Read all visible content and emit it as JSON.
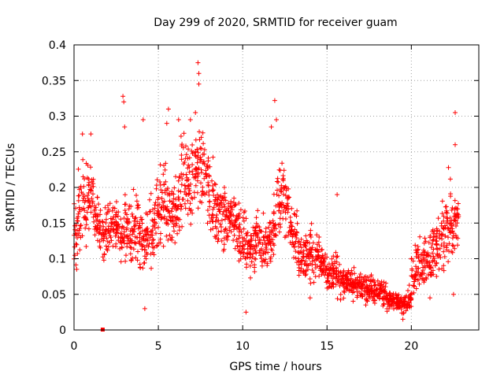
{
  "chart_data": {
    "type": "scatter",
    "title": "Day 299 of 2020, SRMTID for receiver guam",
    "xlabel": "GPS time / hours",
    "ylabel": "SRMTID / TECUs",
    "xlim": [
      0,
      24
    ],
    "ylim": [
      0,
      0.4
    ],
    "x_ticks": [
      0,
      5,
      10,
      15,
      20
    ],
    "x_tick_labels": [
      "0",
      "5",
      "10",
      "15",
      "20"
    ],
    "y_ticks": [
      0,
      0.05,
      0.1,
      0.15,
      0.2,
      0.25,
      0.3,
      0.35,
      0.4
    ],
    "y_tick_labels": [
      "0",
      "0.05",
      "0.1",
      "0.15",
      "0.2",
      "0.25",
      "0.3",
      "0.35",
      "0.4"
    ],
    "grid": true,
    "marker": "+",
    "color": "#ff0000",
    "outlier_marker": {
      "x": 1.7,
      "y": 0.0,
      "shape": "square"
    },
    "series": [
      {
        "name": "SRMTID",
        "x": [
          0.0,
          0.25,
          0.5,
          0.75,
          1.0,
          1.25,
          1.5,
          1.75,
          2.0,
          2.25,
          2.5,
          2.75,
          3.0,
          3.25,
          3.5,
          3.75,
          4.0,
          4.25,
          4.5,
          4.75,
          5.0,
          5.25,
          5.5,
          5.75,
          6.0,
          6.25,
          6.5,
          6.75,
          7.0,
          7.25,
          7.5,
          7.75,
          8.0,
          8.25,
          8.5,
          8.75,
          9.0,
          9.25,
          9.5,
          9.75,
          10.0,
          10.25,
          10.5,
          10.75,
          11.0,
          11.25,
          11.5,
          11.75,
          12.0,
          12.25,
          12.5,
          12.75,
          13.0,
          13.25,
          13.5,
          13.75,
          14.0,
          14.25,
          14.5,
          14.75,
          15.0,
          15.25,
          15.5,
          15.75,
          16.0,
          16.25,
          16.5,
          16.75,
          17.0,
          17.25,
          17.5,
          17.75,
          18.0,
          18.25,
          18.5,
          18.75,
          19.0,
          19.25,
          19.5,
          19.75,
          20.0,
          20.25,
          20.5,
          20.75,
          21.0,
          21.25,
          21.5,
          21.75,
          22.0,
          22.25,
          22.5,
          22.75
        ],
        "mean": [
          0.14,
          0.165,
          0.175,
          0.185,
          0.18,
          0.15,
          0.14,
          0.135,
          0.15,
          0.15,
          0.14,
          0.13,
          0.15,
          0.14,
          0.15,
          0.14,
          0.12,
          0.13,
          0.14,
          0.16,
          0.17,
          0.18,
          0.17,
          0.16,
          0.18,
          0.2,
          0.21,
          0.2,
          0.22,
          0.22,
          0.23,
          0.21,
          0.18,
          0.17,
          0.17,
          0.16,
          0.15,
          0.16,
          0.15,
          0.13,
          0.12,
          0.11,
          0.12,
          0.13,
          0.12,
          0.12,
          0.13,
          0.15,
          0.18,
          0.19,
          0.17,
          0.15,
          0.13,
          0.11,
          0.1,
          0.1,
          0.11,
          0.11,
          0.1,
          0.09,
          0.08,
          0.08,
          0.08,
          0.07,
          0.07,
          0.065,
          0.065,
          0.06,
          0.065,
          0.06,
          0.06,
          0.055,
          0.055,
          0.05,
          0.045,
          0.04,
          0.04,
          0.035,
          0.035,
          0.04,
          0.08,
          0.09,
          0.09,
          0.095,
          0.1,
          0.11,
          0.12,
          0.13,
          0.14,
          0.15,
          0.15,
          0.15
        ],
        "spread": [
          0.05,
          0.06,
          0.06,
          0.06,
          0.05,
          0.04,
          0.04,
          0.04,
          0.04,
          0.04,
          0.04,
          0.04,
          0.05,
          0.05,
          0.06,
          0.06,
          0.05,
          0.05,
          0.05,
          0.06,
          0.06,
          0.07,
          0.06,
          0.05,
          0.05,
          0.06,
          0.06,
          0.06,
          0.06,
          0.07,
          0.06,
          0.05,
          0.05,
          0.05,
          0.05,
          0.05,
          0.04,
          0.04,
          0.04,
          0.04,
          0.04,
          0.04,
          0.04,
          0.04,
          0.04,
          0.04,
          0.04,
          0.05,
          0.06,
          0.06,
          0.05,
          0.04,
          0.04,
          0.04,
          0.04,
          0.04,
          0.04,
          0.04,
          0.04,
          0.03,
          0.03,
          0.03,
          0.03,
          0.025,
          0.025,
          0.025,
          0.025,
          0.02,
          0.02,
          0.02,
          0.02,
          0.02,
          0.02,
          0.02,
          0.02,
          0.015,
          0.015,
          0.015,
          0.015,
          0.02,
          0.03,
          0.04,
          0.04,
          0.04,
          0.04,
          0.04,
          0.04,
          0.05,
          0.05,
          0.05,
          0.05,
          0.05
        ],
        "peaks": [
          {
            "x": 0.5,
            "y": 0.275
          },
          {
            "x": 1.0,
            "y": 0.275
          },
          {
            "x": 2.9,
            "y": 0.328
          },
          {
            "x": 2.95,
            "y": 0.32
          },
          {
            "x": 3.0,
            "y": 0.285
          },
          {
            "x": 4.1,
            "y": 0.295
          },
          {
            "x": 5.5,
            "y": 0.29
          },
          {
            "x": 5.6,
            "y": 0.31
          },
          {
            "x": 6.2,
            "y": 0.295
          },
          {
            "x": 6.9,
            "y": 0.295
          },
          {
            "x": 7.2,
            "y": 0.305
          },
          {
            "x": 7.35,
            "y": 0.375
          },
          {
            "x": 7.4,
            "y": 0.36
          },
          {
            "x": 7.4,
            "y": 0.345
          },
          {
            "x": 11.7,
            "y": 0.285
          },
          {
            "x": 11.9,
            "y": 0.322
          },
          {
            "x": 12.0,
            "y": 0.295
          },
          {
            "x": 15.6,
            "y": 0.19
          },
          {
            "x": 22.6,
            "y": 0.305
          },
          {
            "x": 22.6,
            "y": 0.26
          },
          {
            "x": 22.2,
            "y": 0.228
          },
          {
            "x": 4.2,
            "y": 0.03
          },
          {
            "x": 10.2,
            "y": 0.025
          },
          {
            "x": 19.5,
            "y": 0.015
          },
          {
            "x": 22.5,
            "y": 0.05
          },
          {
            "x": 14.0,
            "y": 0.045
          },
          {
            "x": 17.3,
            "y": 0.035
          }
        ]
      }
    ]
  }
}
